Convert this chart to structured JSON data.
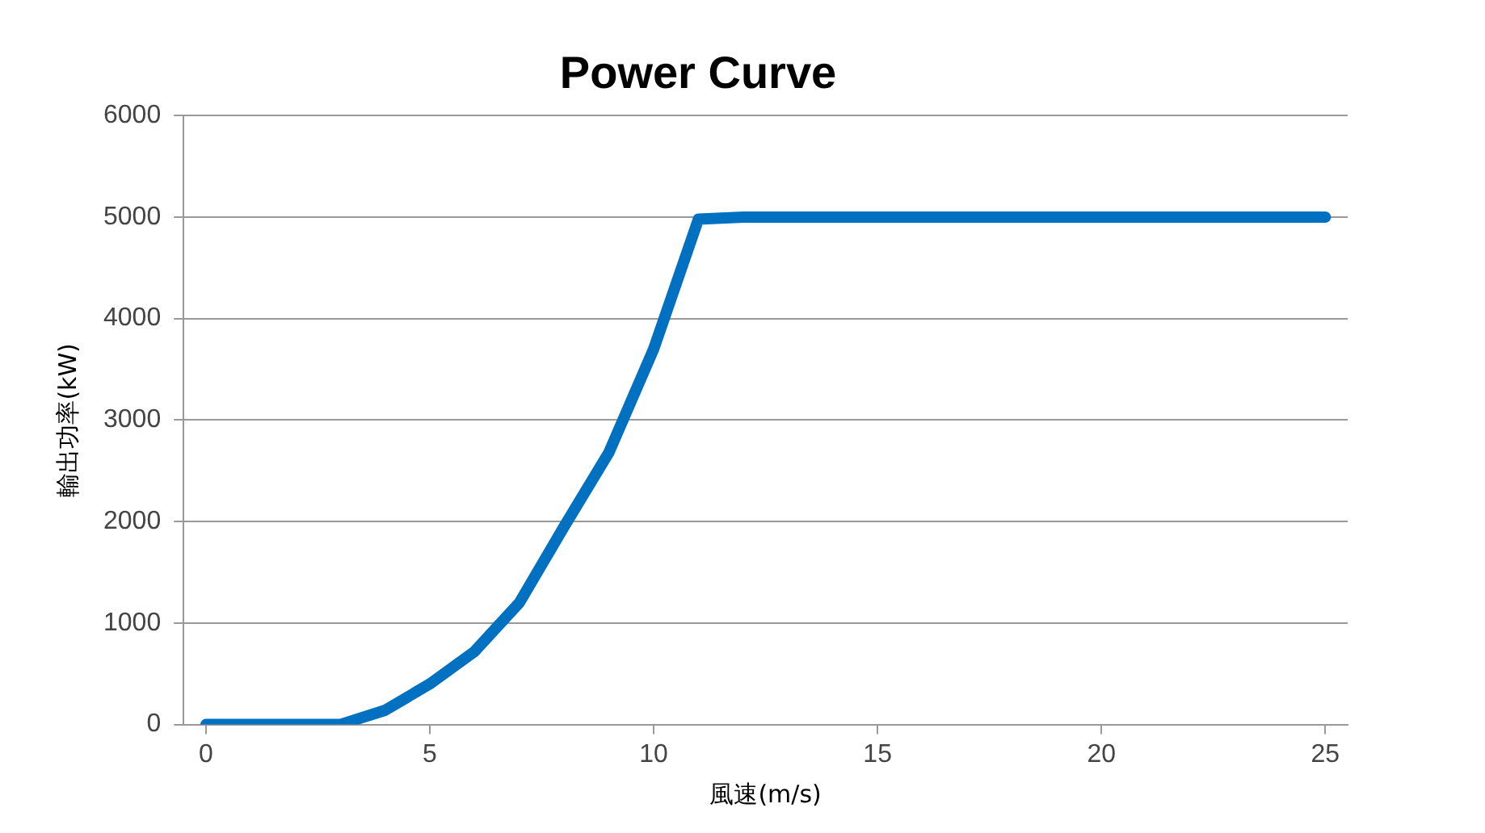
{
  "chart_data": {
    "type": "line",
    "title": "Power Curve",
    "xlabel": "風速(m/s)",
    "ylabel": "輸出功率(kW)",
    "x": [
      0,
      1,
      2,
      3,
      4,
      5,
      6,
      7,
      8,
      9,
      10,
      11,
      12,
      13,
      14,
      15,
      16,
      17,
      18,
      19,
      20,
      21,
      22,
      23,
      24,
      25
    ],
    "series": [
      {
        "color": "#0070c0",
        "values": [
          0,
          0,
          0,
          0,
          140,
          400,
          720,
          1200,
          1950,
          2680,
          3700,
          4980,
          5000,
          5000,
          5000,
          5000,
          5000,
          5000,
          5000,
          5000,
          5000,
          5000,
          5000,
          5000,
          5000,
          5000
        ]
      }
    ],
    "xlim": [
      -0.5,
      25.5
    ],
    "xticks": [
      0,
      5,
      10,
      15,
      20,
      25
    ],
    "ylim": [
      0,
      6000
    ],
    "yticks": [
      0,
      1000,
      2000,
      3000,
      4000,
      5000,
      6000
    ],
    "grid": "y",
    "legend": false,
    "marker": "none",
    "line_style": "solid"
  }
}
